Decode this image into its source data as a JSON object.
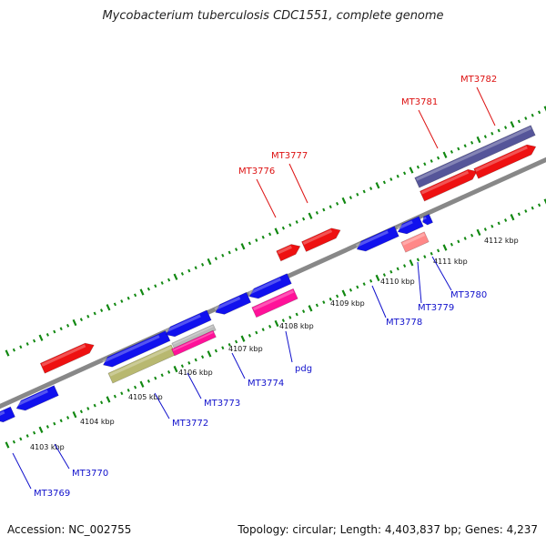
{
  "title": "Mycobacterium tuberculosis CDC1551, complete genome",
  "footer": {
    "accession": "Accession: NC_002755",
    "topology": "Topology: circular; Length: 4,403,837 bp; Genes: 4,237"
  },
  "colors": {
    "forward_gene": "#ee1111",
    "reverse_gene": "#1111ee",
    "rna_gene": "#ff1199",
    "pseudo_gene": "#b8b870",
    "wide_feature": "#555599",
    "pale_gene": "#ff8888",
    "backbone": "#888888",
    "ticks": "#118811",
    "label_red": "#dd1111",
    "label_blue": "#1111cc"
  },
  "ruler": [
    {
      "label": "4103 kbp"
    },
    {
      "label": "4104 kbp"
    },
    {
      "label": "4105 kbp"
    },
    {
      "label": "4106 kbp"
    },
    {
      "label": "4107 kbp"
    },
    {
      "label": "4108 kbp"
    },
    {
      "label": "4109 kbp"
    },
    {
      "label": "4110 kbp"
    },
    {
      "label": "4111 kbp"
    },
    {
      "label": "4112 kbp"
    }
  ],
  "gene_labels": [
    {
      "text": "MT3782",
      "strand": "forward"
    },
    {
      "text": "MT3781",
      "strand": "forward"
    },
    {
      "text": "MT3777",
      "strand": "forward"
    },
    {
      "text": "MT3776",
      "strand": "forward"
    },
    {
      "text": "MT3769",
      "strand": "reverse"
    },
    {
      "text": "MT3770",
      "strand": "reverse"
    },
    {
      "text": "MT3772",
      "strand": "reverse"
    },
    {
      "text": "MT3773",
      "strand": "reverse"
    },
    {
      "text": "MT3774",
      "strand": "reverse"
    },
    {
      "text": "pdg",
      "strand": "reverse"
    },
    {
      "text": "MT3778",
      "strand": "reverse"
    },
    {
      "text": "MT3779",
      "strand": "reverse"
    },
    {
      "text": "MT3780",
      "strand": "reverse"
    }
  ]
}
